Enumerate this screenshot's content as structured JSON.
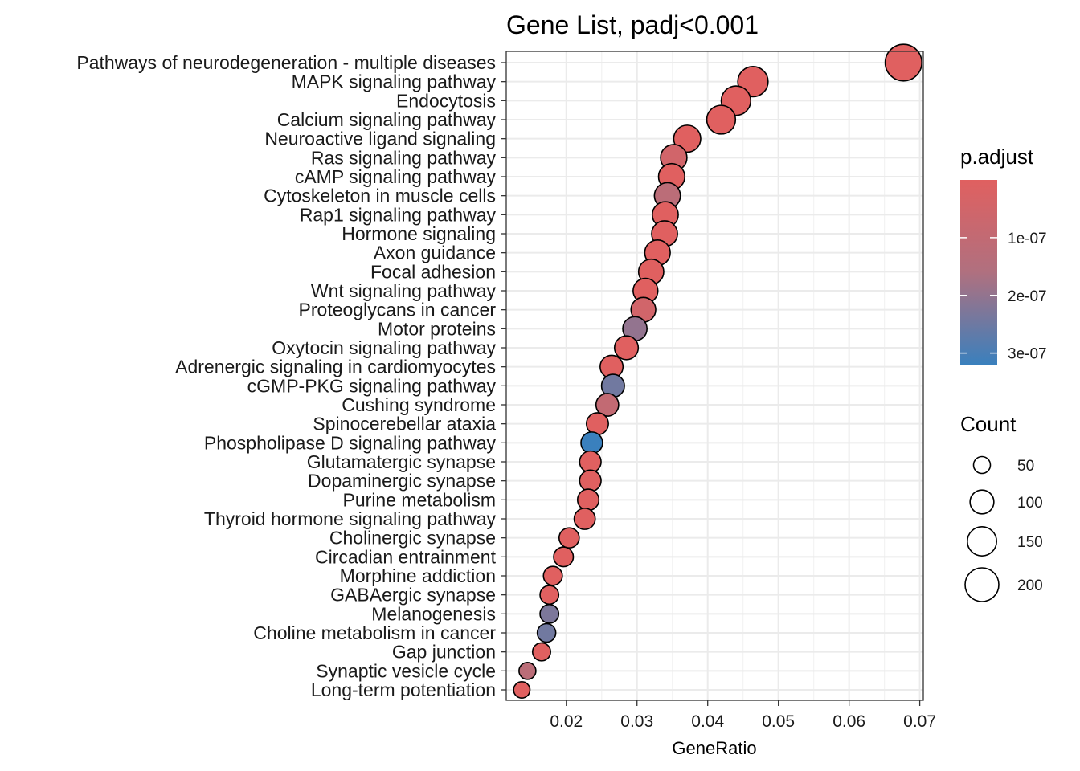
{
  "chart_data": {
    "type": "scatter",
    "title": "Gene List, padj<0.001",
    "xlabel": "GeneRatio",
    "ylabel": "",
    "xlim": [
      0.0115,
      0.0705
    ],
    "x_ticks": [
      0.02,
      0.03,
      0.04,
      0.05,
      0.06,
      0.07
    ],
    "x_tick_labels": [
      "0.02",
      "0.03",
      "0.04",
      "0.05",
      "0.06",
      "0.07"
    ],
    "grid": true,
    "color_legend": {
      "title": "p.adjust",
      "low_color": "#e06060",
      "mid_color": "#b0707f",
      "high_color": "#3a80bd",
      "range": [
        0,
        3.2e-07
      ],
      "ticks": [
        1e-07,
        2e-07,
        3e-07
      ],
      "tick_labels": [
        "1e-07",
        "2e-07",
        "3e-07"
      ],
      "placement": "right"
    },
    "size_legend": {
      "title": "Count",
      "values": [
        50,
        100,
        150,
        200
      ],
      "labels": [
        "50",
        "100",
        "150",
        "200"
      ],
      "placement": "right"
    },
    "points": [
      {
        "category": "Pathways of neurodegeneration - multiple diseases",
        "gene_ratio": 0.0677,
        "p_adjust": 1e-12,
        "count": 235
      },
      {
        "category": "MAPK signaling pathway",
        "gene_ratio": 0.0464,
        "p_adjust": 1e-12,
        "count": 161
      },
      {
        "category": "Endocytosis",
        "gene_ratio": 0.044,
        "p_adjust": 1e-12,
        "count": 152
      },
      {
        "category": "Calcium signaling pathway",
        "gene_ratio": 0.0419,
        "p_adjust": 1e-12,
        "count": 145
      },
      {
        "category": "Neuroactive ligand signaling",
        "gene_ratio": 0.0371,
        "p_adjust": 1e-12,
        "count": 128
      },
      {
        "category": "Ras signaling pathway",
        "gene_ratio": 0.0352,
        "p_adjust": 5e-08,
        "count": 122
      },
      {
        "category": "cAMP signaling pathway",
        "gene_ratio": 0.0349,
        "p_adjust": 1e-12,
        "count": 121
      },
      {
        "category": "Cytoskeleton in muscle cells",
        "gene_ratio": 0.0343,
        "p_adjust": 1.25e-07,
        "count": 119
      },
      {
        "category": "Rap1 signaling pathway",
        "gene_ratio": 0.034,
        "p_adjust": 1e-12,
        "count": 118
      },
      {
        "category": "Hormone signaling",
        "gene_ratio": 0.0339,
        "p_adjust": 1e-12,
        "count": 117
      },
      {
        "category": "Axon guidance",
        "gene_ratio": 0.0329,
        "p_adjust": 1e-12,
        "count": 114
      },
      {
        "category": "Focal adhesion",
        "gene_ratio": 0.032,
        "p_adjust": 1e-12,
        "count": 111
      },
      {
        "category": "Wnt signaling pathway",
        "gene_ratio": 0.0312,
        "p_adjust": 1e-12,
        "count": 108
      },
      {
        "category": "Proteoglycans in cancer",
        "gene_ratio": 0.0309,
        "p_adjust": 5e-08,
        "count": 107
      },
      {
        "category": "Motor proteins",
        "gene_ratio": 0.0297,
        "p_adjust": 2e-07,
        "count": 103
      },
      {
        "category": "Oxytocin signaling pathway",
        "gene_ratio": 0.0285,
        "p_adjust": 1e-12,
        "count": 99
      },
      {
        "category": "Adrenergic signaling in cardiomyocytes",
        "gene_ratio": 0.0264,
        "p_adjust": 1e-12,
        "count": 92
      },
      {
        "category": "cGMP-PKG signaling pathway",
        "gene_ratio": 0.0266,
        "p_adjust": 2.45e-07,
        "count": 92
      },
      {
        "category": "Cushing syndrome",
        "gene_ratio": 0.0258,
        "p_adjust": 1e-07,
        "count": 90
      },
      {
        "category": "Spinocerebellar ataxia",
        "gene_ratio": 0.0244,
        "p_adjust": 1e-12,
        "count": 85
      },
      {
        "category": "Phospholipase D signaling pathway",
        "gene_ratio": 0.0236,
        "p_adjust": 3.2e-07,
        "count": 82
      },
      {
        "category": "Glutamatergic synapse",
        "gene_ratio": 0.0234,
        "p_adjust": 1e-12,
        "count": 81
      },
      {
        "category": "Dopaminergic synapse",
        "gene_ratio": 0.0234,
        "p_adjust": 1e-12,
        "count": 81
      },
      {
        "category": "Purine metabolism",
        "gene_ratio": 0.0231,
        "p_adjust": 1e-12,
        "count": 80
      },
      {
        "category": "Thyroid hormone signaling pathway",
        "gene_ratio": 0.0226,
        "p_adjust": 1e-12,
        "count": 78
      },
      {
        "category": "Cholinergic synapse",
        "gene_ratio": 0.0204,
        "p_adjust": 1e-12,
        "count": 71
      },
      {
        "category": "Circadian entrainment",
        "gene_ratio": 0.0196,
        "p_adjust": 1e-12,
        "count": 68
      },
      {
        "category": "Morphine addiction",
        "gene_ratio": 0.0181,
        "p_adjust": 1e-12,
        "count": 63
      },
      {
        "category": "GABAergic synapse",
        "gene_ratio": 0.0176,
        "p_adjust": 1e-12,
        "count": 61
      },
      {
        "category": "Melanogenesis",
        "gene_ratio": 0.0176,
        "p_adjust": 2.3e-07,
        "count": 61
      },
      {
        "category": "Choline metabolism in cancer",
        "gene_ratio": 0.0172,
        "p_adjust": 2.45e-07,
        "count": 60
      },
      {
        "category": "Gap junction",
        "gene_ratio": 0.0165,
        "p_adjust": 1e-12,
        "count": 57
      },
      {
        "category": "Synaptic vesicle cycle",
        "gene_ratio": 0.0145,
        "p_adjust": 1.25e-07,
        "count": 50
      },
      {
        "category": "Long-term potentiation",
        "gene_ratio": 0.0137,
        "p_adjust": 1e-12,
        "count": 47
      }
    ]
  }
}
